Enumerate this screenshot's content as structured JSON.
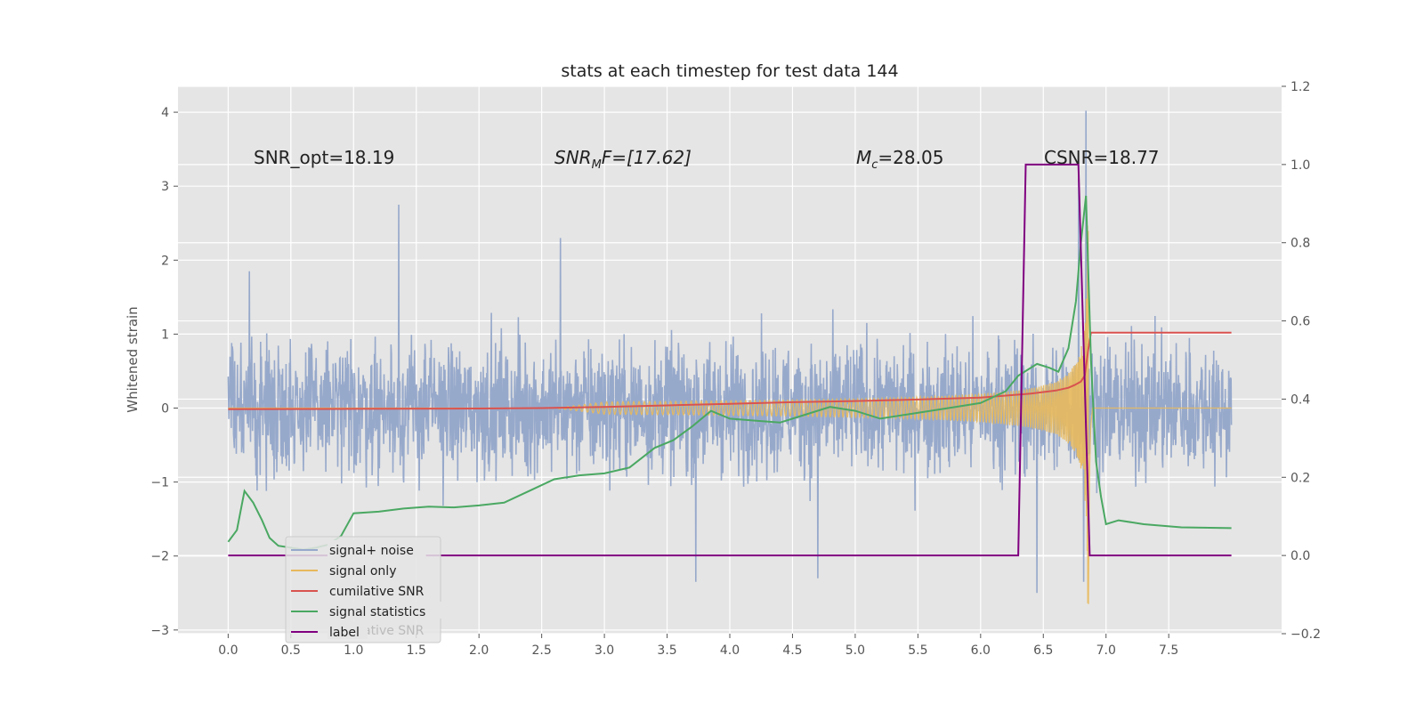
{
  "chart_data": {
    "type": "line",
    "title": "stats at each timestep for test data 144",
    "ylabel": "Whitened strain",
    "ylabel_right": "",
    "xlim": [
      -0.4,
      8.4
    ],
    "ylim": [
      -3.05,
      4.35
    ],
    "ylim_right": [
      -0.2,
      1.2
    ],
    "x_ticks": [
      "0.0",
      "0.5",
      "1.0",
      "1.5",
      "2.0",
      "2.5",
      "3.0",
      "3.5",
      "4.0",
      "4.5",
      "5.0",
      "5.5",
      "6.0",
      "6.5",
      "7.0",
      "7.5"
    ],
    "y_ticks": [
      "-3",
      "-2",
      "-1",
      "0",
      "1",
      "2",
      "3",
      "4"
    ],
    "y_ticks_right": [
      "-0.2",
      "0.0",
      "0.2",
      "0.4",
      "0.6",
      "0.8",
      "1.0",
      "1.2"
    ],
    "grid": true,
    "annotations": {
      "snr_opt": "SNR_opt=18.19",
      "snr_mf_main": "SNR",
      "snr_mf_sub": "M",
      "snr_mf_rest": "F=[17.62]",
      "mc_main": "M",
      "mc_sub": "c",
      "mc_rest": "=28.05",
      "csnr": "CSNR=18.77"
    },
    "legend": {
      "position": "lower-left",
      "entries": [
        "signal+ noise",
        "signal only",
        "cumilative SNR",
        "signal statistics",
        "label"
      ],
      "ghost_entries": [
        "cumilative SNR",
        "cumilative SNR"
      ]
    },
    "series": [
      {
        "name": "signal+ noise",
        "axis": "left",
        "color": "#97a9cb",
        "kind": "noise",
        "x_range": [
          0.0,
          8.0
        ],
        "typical_range": [
          -1.0,
          1.0
        ],
        "peaks": [
          [
            0.17,
            1.85
          ],
          [
            1.36,
            2.75
          ],
          [
            2.65,
            2.3
          ],
          [
            3.73,
            -2.35
          ],
          [
            4.7,
            -2.3
          ],
          [
            6.45,
            -2.5
          ],
          [
            6.82,
            -2.35
          ],
          [
            6.84,
            4.02
          ],
          [
            6.78,
            3.1
          ]
        ]
      },
      {
        "name": "signal only",
        "axis": "left",
        "color": "#e8b95c",
        "kind": "chirp",
        "x_range": [
          0.0,
          8.0
        ],
        "merger_x": 6.86,
        "peak_amplitude": 2.65
      },
      {
        "name": "cumilative SNR",
        "axis": "right",
        "color": "#d9534f",
        "x": [
          0.0,
          1.0,
          2.0,
          2.5,
          3.0,
          3.5,
          4.0,
          4.5,
          5.0,
          5.5,
          6.0,
          6.2,
          6.4,
          6.6,
          6.7,
          6.75,
          6.8,
          6.83,
          6.86,
          6.88,
          7.0,
          7.5,
          8.0
        ],
        "values": [
          0.374,
          0.375,
          0.376,
          0.377,
          0.38,
          0.384,
          0.388,
          0.392,
          0.395,
          0.399,
          0.404,
          0.409,
          0.414,
          0.422,
          0.429,
          0.436,
          0.445,
          0.46,
          0.53,
          0.57,
          0.57,
          0.57,
          0.57
        ]
      },
      {
        "name": "signal statistics",
        "axis": "right",
        "color": "#4aa862",
        "x": [
          0.0,
          0.07,
          0.13,
          0.2,
          0.27,
          0.33,
          0.4,
          0.5,
          0.6,
          0.7,
          0.8,
          0.9,
          1.0,
          1.2,
          1.4,
          1.6,
          1.8,
          2.0,
          2.2,
          2.4,
          2.6,
          2.8,
          3.0,
          3.2,
          3.4,
          3.55,
          3.7,
          3.85,
          4.0,
          4.2,
          4.4,
          4.6,
          4.8,
          5.0,
          5.2,
          5.4,
          5.6,
          5.8,
          6.0,
          6.2,
          6.3,
          6.45,
          6.55,
          6.62,
          6.7,
          6.76,
          6.8,
          6.84,
          6.88,
          6.92,
          6.96,
          7.0,
          7.1,
          7.3,
          7.6,
          8.0
        ],
        "values": [
          0.035,
          0.065,
          0.165,
          0.135,
          0.09,
          0.045,
          0.025,
          0.02,
          0.015,
          0.02,
          0.028,
          0.05,
          0.108,
          0.112,
          0.12,
          0.125,
          0.123,
          0.128,
          0.135,
          0.165,
          0.195,
          0.205,
          0.21,
          0.225,
          0.275,
          0.295,
          0.33,
          0.37,
          0.35,
          0.345,
          0.34,
          0.36,
          0.38,
          0.37,
          0.35,
          0.36,
          0.37,
          0.38,
          0.39,
          0.42,
          0.46,
          0.49,
          0.48,
          0.47,
          0.53,
          0.65,
          0.8,
          0.92,
          0.5,
          0.24,
          0.15,
          0.08,
          0.09,
          0.08,
          0.072,
          0.07
        ]
      },
      {
        "name": "label",
        "axis": "right",
        "color": "#800080",
        "x": [
          0.0,
          6.3,
          6.36,
          6.78,
          6.87,
          8.0
        ],
        "values": [
          0.0,
          0.0,
          1.0,
          1.0,
          0.0,
          0.0
        ]
      }
    ]
  }
}
